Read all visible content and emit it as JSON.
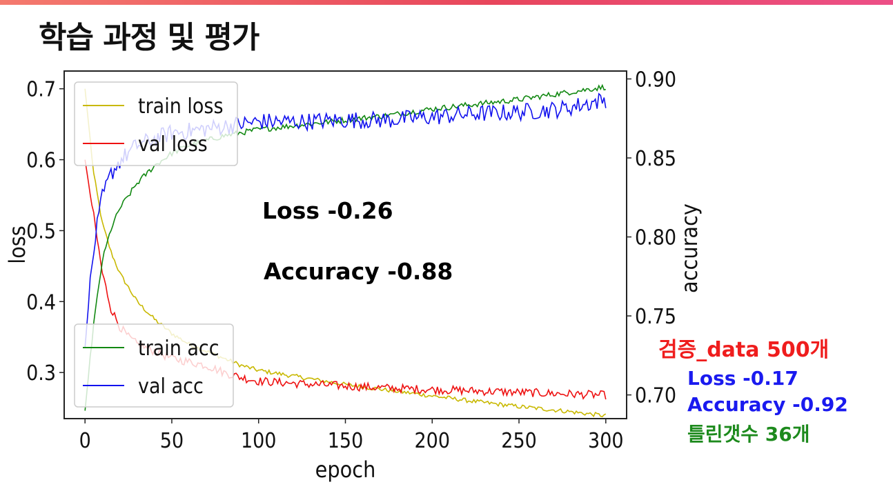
{
  "slide": {
    "title": "학습 과정 및 평가",
    "accent_color": "#e8465c"
  },
  "annotations": {
    "test_loss": "Loss -0.26",
    "test_accuracy": "Accuracy -0.88"
  },
  "validation_summary": {
    "title": "검증_data 500개",
    "loss": "Loss -0.17",
    "accuracy": "Accuracy -0.92",
    "wrong_count": "틀린갯수 36개",
    "colors": {
      "title": "#ef1d1d",
      "metrics": "#1a1aef",
      "wrong": "#1d8a1d"
    }
  },
  "chart_data": {
    "type": "line",
    "xlabel": "epoch",
    "ylabel_left": "loss",
    "ylabel_right": "accuracy",
    "xlim": [
      -12,
      312
    ],
    "ylim_left": [
      0.235,
      0.725
    ],
    "ylim_right": [
      0.685,
      0.905
    ],
    "x_ticks": [
      0,
      50,
      100,
      150,
      200,
      250,
      300
    ],
    "y_ticks_left": [
      0.3,
      0.4,
      0.5,
      0.6,
      0.7
    ],
    "y_ticks_right": [
      0.7,
      0.75,
      0.8,
      0.85,
      0.9
    ],
    "grid": false,
    "legends": [
      {
        "placement": "top-left",
        "entries": [
          "train loss",
          "val loss"
        ]
      },
      {
        "placement": "bottom-left",
        "entries": [
          "train acc",
          "val acc"
        ]
      }
    ],
    "series": [
      {
        "name": "train loss",
        "axis": "left",
        "color": "#c8b800",
        "x": [
          0,
          5,
          10,
          15,
          20,
          25,
          30,
          40,
          50,
          60,
          70,
          80,
          90,
          100,
          125,
          150,
          175,
          200,
          225,
          250,
          275,
          300
        ],
        "y": [
          0.7,
          0.58,
          0.51,
          0.47,
          0.44,
          0.42,
          0.4,
          0.375,
          0.355,
          0.34,
          0.33,
          0.32,
          0.31,
          0.303,
          0.293,
          0.283,
          0.275,
          0.267,
          0.259,
          0.252,
          0.246,
          0.239
        ],
        "noise": 0.003
      },
      {
        "name": "val loss",
        "axis": "left",
        "color": "#ee1111",
        "x": [
          0,
          5,
          10,
          15,
          20,
          25,
          30,
          40,
          50,
          60,
          70,
          80,
          90,
          100,
          125,
          150,
          175,
          200,
          225,
          250,
          275,
          300
        ],
        "y": [
          0.6,
          0.52,
          0.44,
          0.39,
          0.365,
          0.35,
          0.34,
          0.33,
          0.32,
          0.315,
          0.31,
          0.3,
          0.293,
          0.288,
          0.284,
          0.281,
          0.278,
          0.276,
          0.274,
          0.272,
          0.27,
          0.268
        ],
        "noise": 0.006
      },
      {
        "name": "train acc",
        "axis": "right",
        "color": "#118811",
        "x": [
          0,
          5,
          10,
          15,
          20,
          25,
          30,
          40,
          50,
          60,
          80,
          100,
          125,
          150,
          175,
          200,
          225,
          250,
          275,
          300
        ],
        "y": [
          0.69,
          0.745,
          0.785,
          0.805,
          0.818,
          0.826,
          0.834,
          0.845,
          0.853,
          0.858,
          0.864,
          0.868,
          0.871,
          0.874,
          0.877,
          0.881,
          0.884,
          0.887,
          0.891,
          0.895
        ],
        "noise": 0.0018
      },
      {
        "name": "val acc",
        "axis": "right",
        "color": "#1111ee",
        "x": [
          0,
          3,
          6,
          10,
          15,
          20,
          25,
          30,
          40,
          50,
          60,
          80,
          100,
          125,
          150,
          175,
          200,
          225,
          250,
          275,
          300
        ],
        "y": [
          0.73,
          0.77,
          0.8,
          0.825,
          0.84,
          0.848,
          0.853,
          0.858,
          0.862,
          0.866,
          0.867,
          0.87,
          0.873,
          0.873,
          0.874,
          0.874,
          0.876,
          0.878,
          0.879,
          0.881,
          0.887
        ],
        "noise": 0.0055
      }
    ]
  }
}
